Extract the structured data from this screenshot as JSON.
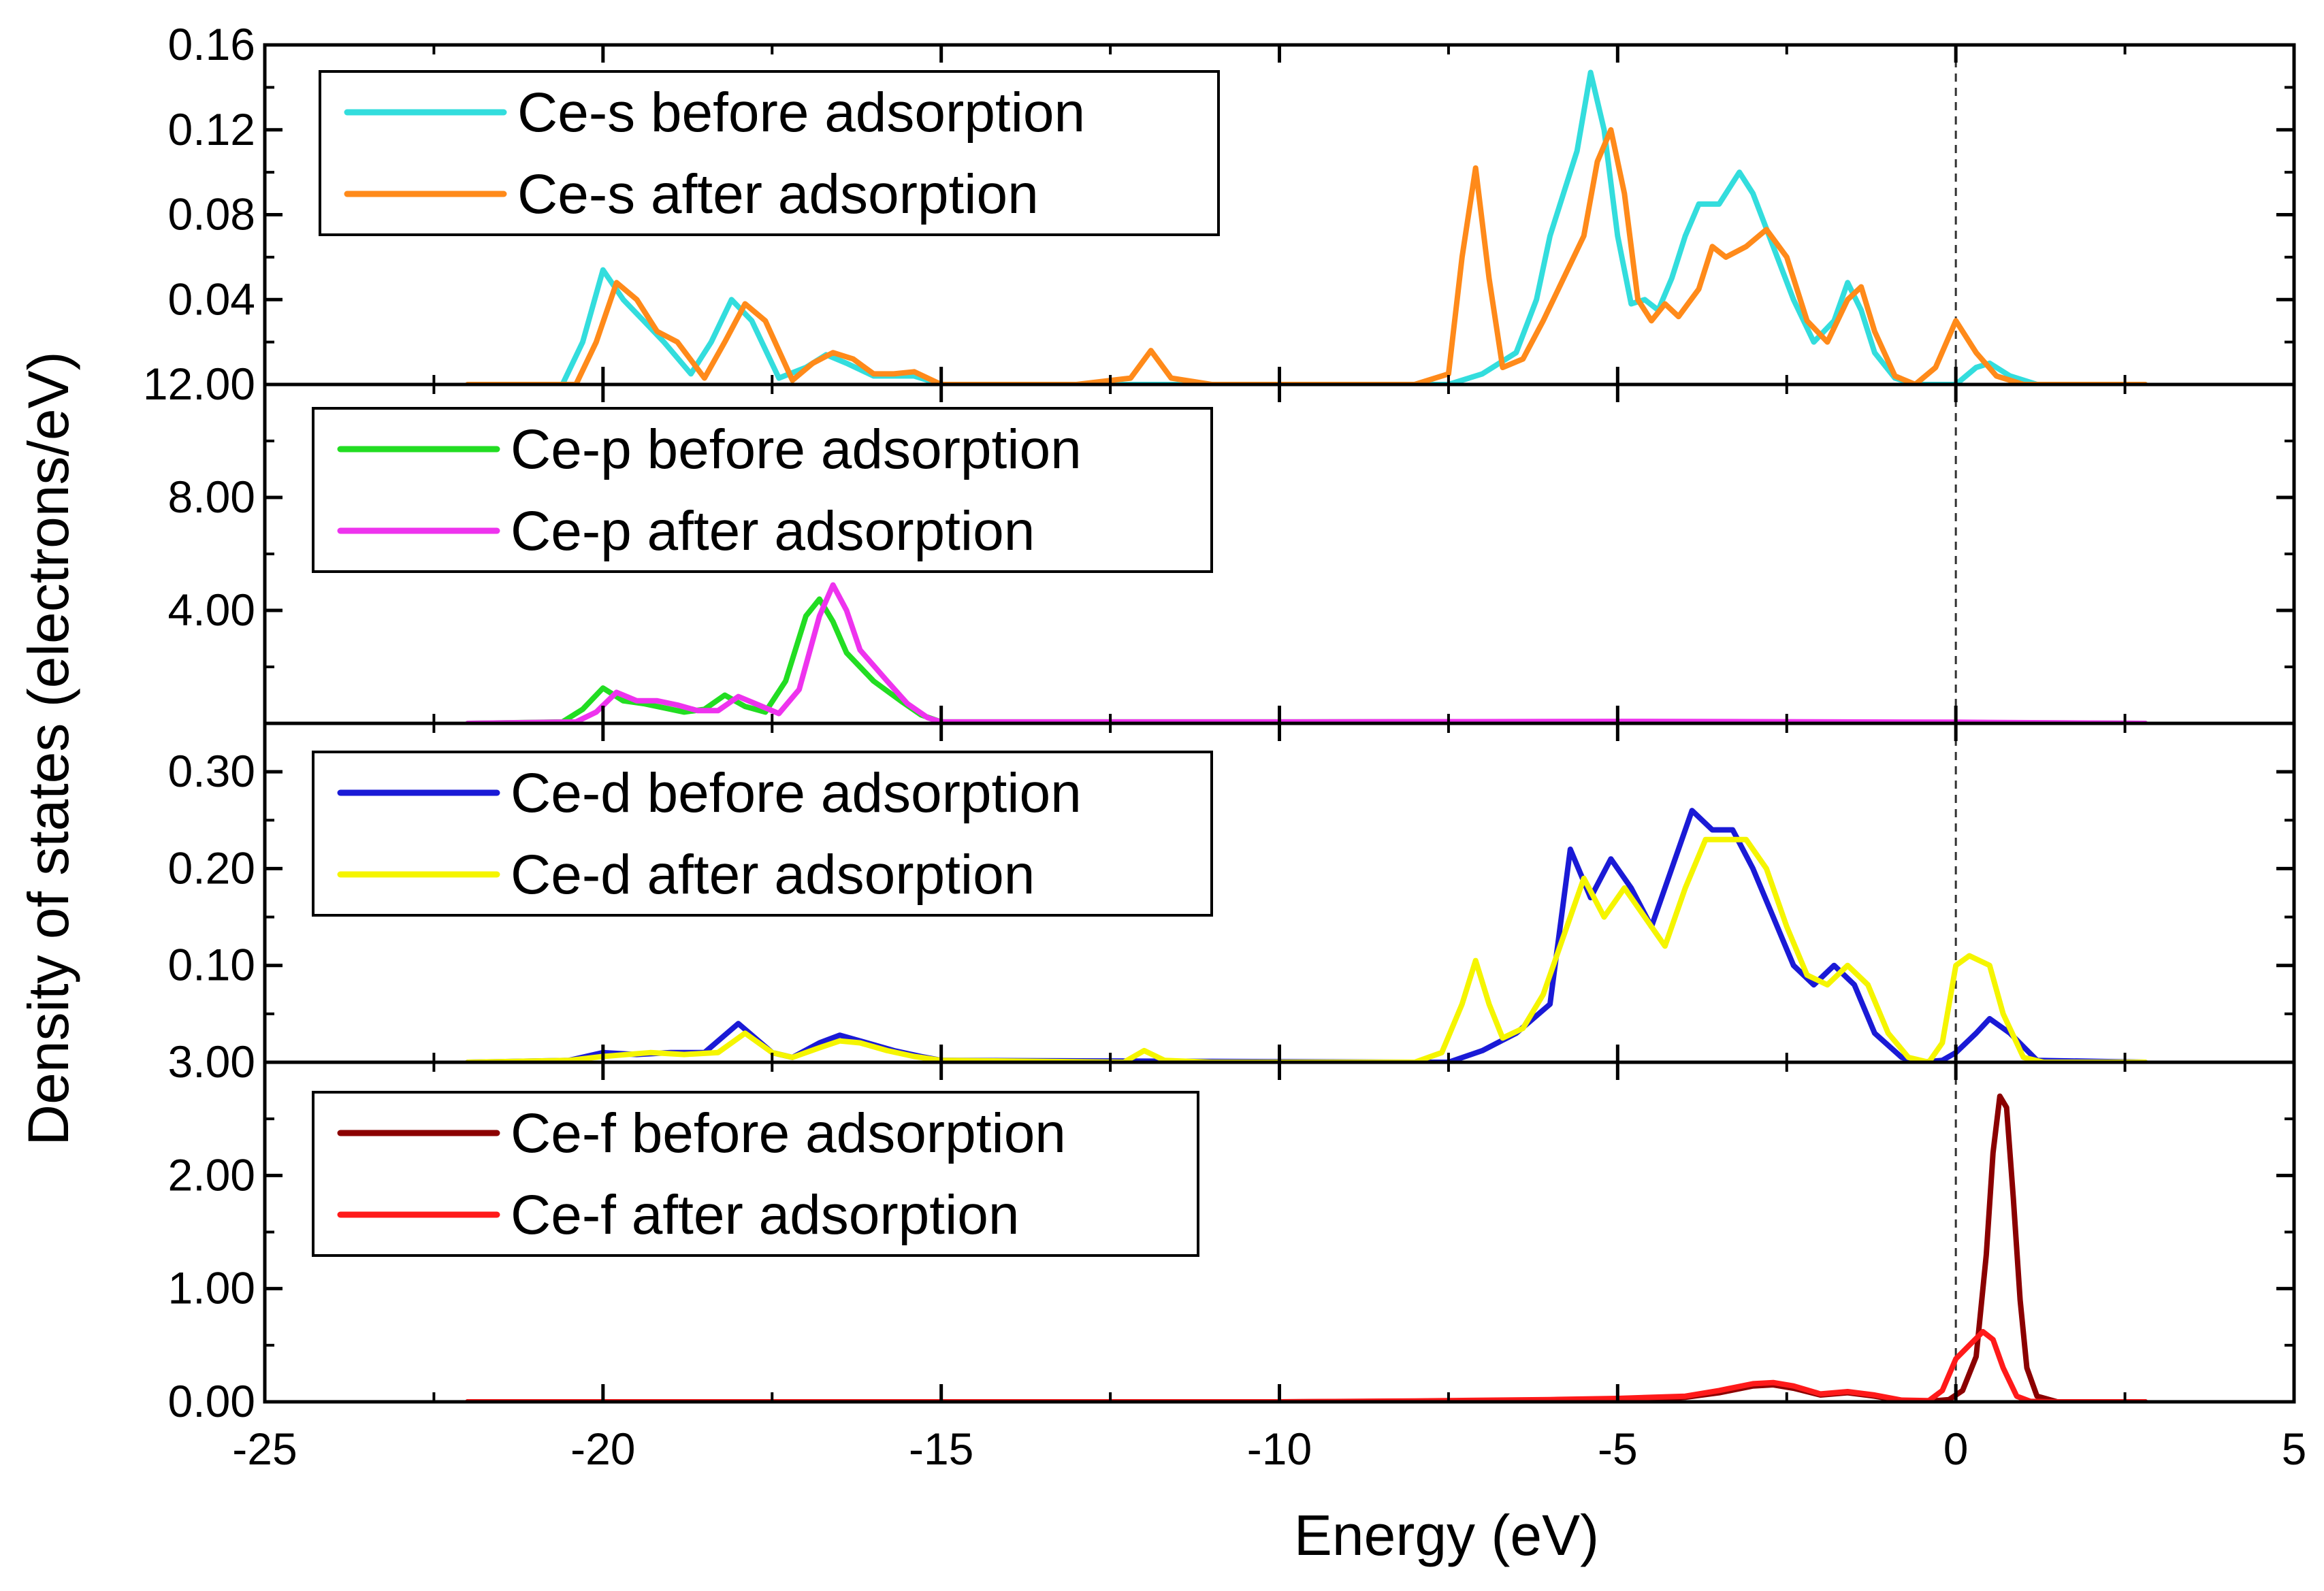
{
  "chart_data": {
    "type": "line",
    "title": "",
    "xlabel": "Energy (eV)",
    "ylabel": "Density of states (electrons/eV)",
    "xlim": [
      -25,
      5
    ],
    "xticks": [
      "-25",
      "-20",
      "-15",
      "-10",
      "-5",
      "0",
      "5"
    ],
    "fermi_level": 0,
    "panels": [
      {
        "id": "s",
        "ylim": [
          0,
          0.16
        ],
        "yticks": [
          "0.04",
          "0.08",
          "0.12",
          "0.16"
        ],
        "yticks_values": [
          0.04,
          0.08,
          0.12,
          0.16
        ],
        "bottom_label": "12.00",
        "series": [
          {
            "name": "Ce-s before adsorption",
            "color": "#33dddd",
            "x": [
              -22.0,
              -20.6,
              -20.3,
              -20.0,
              -19.7,
              -19.4,
              -19.1,
              -18.7,
              -18.4,
              -18.1,
              -17.8,
              -17.4,
              -17.0,
              -16.7,
              -16.4,
              -16.0,
              -15.7,
              -15.4,
              -15.0,
              -13.0,
              -12.0,
              -11.0,
              -8.0,
              -7.5,
              -7.0,
              -6.5,
              -6.2,
              -6.0,
              -5.8,
              -5.6,
              -5.4,
              -5.2,
              -5.0,
              -4.8,
              -4.6,
              -4.4,
              -4.2,
              -4.0,
              -3.8,
              -3.5,
              -3.2,
              -3.0,
              -2.7,
              -2.4,
              -2.1,
              -1.8,
              -1.6,
              -1.4,
              -1.2,
              -0.9,
              -0.6,
              -0.3,
              0.0,
              0.3,
              0.5,
              0.8,
              1.2,
              2.8
            ],
            "y": [
              0.0,
              0.0,
              0.02,
              0.054,
              0.04,
              0.03,
              0.02,
              0.005,
              0.02,
              0.04,
              0.03,
              0.003,
              0.008,
              0.014,
              0.01,
              0.004,
              0.004,
              0.004,
              0.0,
              0.0,
              0.0,
              0.0,
              0.0,
              0.0,
              0.005,
              0.015,
              0.04,
              0.07,
              0.09,
              0.11,
              0.147,
              0.12,
              0.07,
              0.038,
              0.04,
              0.035,
              0.05,
              0.07,
              0.085,
              0.085,
              0.1,
              0.09,
              0.065,
              0.04,
              0.02,
              0.03,
              0.048,
              0.035,
              0.015,
              0.003,
              0.0,
              0.0,
              0.0,
              0.008,
              0.01,
              0.004,
              0.0,
              0.0
            ]
          },
          {
            "name": "Ce-s after adsorption",
            "color": "#ff8a1a",
            "x": [
              -22.0,
              -20.4,
              -20.1,
              -19.8,
              -19.5,
              -19.2,
              -18.9,
              -18.5,
              -18.2,
              -17.9,
              -17.6,
              -17.2,
              -16.9,
              -16.6,
              -16.3,
              -16.0,
              -15.7,
              -15.4,
              -15.0,
              -13.0,
              -12.2,
              -11.9,
              -11.6,
              -11.0,
              -8.0,
              -7.5,
              -7.3,
              -7.1,
              -6.9,
              -6.7,
              -6.4,
              -6.1,
              -5.8,
              -5.5,
              -5.3,
              -5.1,
              -4.9,
              -4.7,
              -4.5,
              -4.3,
              -4.1,
              -3.8,
              -3.6,
              -3.4,
              -3.1,
              -2.8,
              -2.5,
              -2.2,
              -1.9,
              -1.6,
              -1.4,
              -1.2,
              -0.9,
              -0.6,
              -0.3,
              0.0,
              0.3,
              0.6,
              1.0,
              2.8
            ],
            "y": [
              0.0,
              0.0,
              0.02,
              0.048,
              0.04,
              0.025,
              0.02,
              0.003,
              0.02,
              0.038,
              0.03,
              0.002,
              0.01,
              0.015,
              0.012,
              0.005,
              0.005,
              0.006,
              0.0,
              0.0,
              0.003,
              0.016,
              0.003,
              0.0,
              0.0,
              0.005,
              0.06,
              0.102,
              0.05,
              0.008,
              0.012,
              0.03,
              0.05,
              0.07,
              0.105,
              0.12,
              0.09,
              0.04,
              0.03,
              0.038,
              0.032,
              0.045,
              0.065,
              0.06,
              0.065,
              0.073,
              0.06,
              0.03,
              0.02,
              0.04,
              0.046,
              0.025,
              0.004,
              0.0,
              0.008,
              0.03,
              0.015,
              0.004,
              0.0,
              0.0
            ]
          }
        ],
        "legend": [
          "Ce-s before adsorption",
          "Ce-s after adsorption"
        ]
      },
      {
        "id": "p",
        "ylim": [
          0,
          12
        ],
        "yticks": [
          "4.00",
          "8.00"
        ],
        "yticks_values": [
          4,
          8
        ],
        "series": [
          {
            "name": "Ce-p before adsorption",
            "color": "#22dd22",
            "x": [
              -22.0,
              -20.6,
              -20.3,
              -20.0,
              -19.7,
              -19.4,
              -19.1,
              -18.8,
              -18.5,
              -18.2,
              -17.9,
              -17.6,
              -17.3,
              -17.0,
              -16.8,
              -16.6,
              -16.4,
              -16.0,
              -15.6,
              -15.3,
              -15.0,
              -10.0,
              -5.0,
              -3.0,
              0.0,
              2.8
            ],
            "y": [
              0.0,
              0.05,
              0.5,
              1.25,
              0.8,
              0.7,
              0.55,
              0.4,
              0.5,
              1.0,
              0.6,
              0.4,
              1.5,
              3.8,
              4.4,
              3.6,
              2.5,
              1.5,
              0.8,
              0.3,
              0.05,
              0.05,
              0.06,
              0.05,
              0.03,
              0.0
            ]
          },
          {
            "name": "Ce-p after adsorption",
            "color": "#ee33ee",
            "x": [
              -22.0,
              -20.4,
              -20.1,
              -19.8,
              -19.5,
              -19.2,
              -18.9,
              -18.6,
              -18.3,
              -18.0,
              -17.7,
              -17.4,
              -17.1,
              -16.8,
              -16.6,
              -16.4,
              -16.2,
              -15.8,
              -15.5,
              -15.2,
              -15.0,
              -10.0,
              -5.0,
              -3.0,
              0.0,
              2.8
            ],
            "y": [
              0.0,
              0.05,
              0.4,
              1.1,
              0.8,
              0.8,
              0.65,
              0.45,
              0.45,
              0.95,
              0.65,
              0.35,
              1.2,
              3.8,
              4.9,
              4.0,
              2.6,
              1.5,
              0.7,
              0.2,
              0.05,
              0.05,
              0.07,
              0.06,
              0.04,
              0.0
            ]
          }
        ],
        "legend": [
          "Ce-p before adsorption",
          "Ce-p after adsorption"
        ]
      },
      {
        "id": "d",
        "ylim": [
          0,
          0.35
        ],
        "yticks": [
          "0.10",
          "0.20",
          "0.30"
        ],
        "yticks_values": [
          0.1,
          0.2,
          0.3
        ],
        "bottom_label": "3.00",
        "series": [
          {
            "name": "Ce-d before adsorption",
            "color": "#1a1ad6",
            "x": [
              -22.0,
              -20.5,
              -20.0,
              -19.5,
              -19.0,
              -18.5,
              -18.0,
              -17.5,
              -17.2,
              -16.8,
              -16.5,
              -16.1,
              -15.7,
              -15.3,
              -15.0,
              -8.0,
              -7.5,
              -7.0,
              -6.5,
              -6.0,
              -5.7,
              -5.4,
              -5.1,
              -4.8,
              -4.5,
              -4.2,
              -3.9,
              -3.6,
              -3.3,
              -3.0,
              -2.7,
              -2.4,
              -2.1,
              -1.8,
              -1.5,
              -1.2,
              -0.8,
              -0.5,
              -0.2,
              0.0,
              0.3,
              0.5,
              0.8,
              1.2,
              2.8
            ],
            "y": [
              0.0,
              0.002,
              0.01,
              0.008,
              0.01,
              0.01,
              0.04,
              0.01,
              0.005,
              0.02,
              0.028,
              0.02,
              0.012,
              0.006,
              0.002,
              0.0,
              0.0,
              0.012,
              0.03,
              0.06,
              0.22,
              0.17,
              0.21,
              0.18,
              0.14,
              0.2,
              0.26,
              0.24,
              0.24,
              0.2,
              0.15,
              0.1,
              0.08,
              0.1,
              0.08,
              0.03,
              0.005,
              0.0,
              0.002,
              0.01,
              0.03,
              0.045,
              0.03,
              0.002,
              0.0
            ]
          },
          {
            "name": "Ce-d after adsorption",
            "color": "#f5f500",
            "x": [
              -22.0,
              -20.5,
              -20.0,
              -19.3,
              -18.8,
              -18.3,
              -17.9,
              -17.5,
              -17.2,
              -16.8,
              -16.5,
              -16.2,
              -15.8,
              -15.4,
              -15.0,
              -12.3,
              -12.0,
              -11.7,
              -11.0,
              -8.0,
              -7.6,
              -7.3,
              -7.1,
              -6.9,
              -6.7,
              -6.4,
              -6.1,
              -5.8,
              -5.5,
              -5.2,
              -4.9,
              -4.6,
              -4.3,
              -4.0,
              -3.7,
              -3.4,
              -3.1,
              -2.8,
              -2.5,
              -2.2,
              -1.9,
              -1.6,
              -1.3,
              -1.0,
              -0.7,
              -0.4,
              -0.2,
              0.0,
              0.2,
              0.5,
              0.7,
              1.0,
              1.3,
              2.8
            ],
            "y": [
              0.0,
              0.002,
              0.006,
              0.01,
              0.008,
              0.01,
              0.03,
              0.01,
              0.005,
              0.015,
              0.022,
              0.02,
              0.012,
              0.006,
              0.002,
              0.0,
              0.012,
              0.002,
              0.0,
              0.0,
              0.01,
              0.06,
              0.105,
              0.06,
              0.025,
              0.035,
              0.07,
              0.13,
              0.19,
              0.15,
              0.18,
              0.15,
              0.12,
              0.18,
              0.23,
              0.23,
              0.23,
              0.2,
              0.14,
              0.09,
              0.08,
              0.1,
              0.08,
              0.03,
              0.005,
              0.0,
              0.02,
              0.1,
              0.11,
              0.1,
              0.05,
              0.005,
              0.0,
              0.0
            ]
          }
        ],
        "legend": [
          "Ce-d before adsorption",
          "Ce-d after adsorption"
        ]
      },
      {
        "id": "f",
        "ylim": [
          0,
          3.0
        ],
        "yticks": [
          "0.00",
          "1.00",
          "2.00"
        ],
        "yticks_values": [
          0,
          1,
          2
        ],
        "series": [
          {
            "name": "Ce-f before adsorption",
            "color": "#8b0000",
            "x": [
              -22.0,
              -10.0,
              -8.0,
              -6.0,
              -5.0,
              -4.0,
              -3.5,
              -3.0,
              -2.7,
              -2.4,
              -2.0,
              -1.6,
              -1.2,
              -0.8,
              -0.4,
              -0.1,
              0.1,
              0.3,
              0.45,
              0.55,
              0.65,
              0.75,
              0.85,
              0.95,
              1.05,
              1.2,
              1.5,
              2.8
            ],
            "y": [
              0.0,
              0.0,
              0.005,
              0.01,
              0.02,
              0.04,
              0.08,
              0.14,
              0.15,
              0.12,
              0.06,
              0.08,
              0.05,
              0.01,
              0.005,
              0.02,
              0.1,
              0.4,
              1.3,
              2.2,
              2.7,
              2.6,
              1.8,
              0.9,
              0.3,
              0.05,
              0.0,
              0.0
            ]
          },
          {
            "name": "Ce-f after adsorption",
            "color": "#ff1a1a",
            "x": [
              -22.0,
              -10.0,
              -8.0,
              -6.0,
              -5.0,
              -4.0,
              -3.5,
              -3.0,
              -2.7,
              -2.4,
              -2.0,
              -1.6,
              -1.2,
              -0.8,
              -0.4,
              -0.2,
              0.0,
              0.2,
              0.4,
              0.55,
              0.7,
              0.9,
              1.1,
              1.4,
              2.8
            ],
            "y": [
              0.0,
              0.0,
              0.008,
              0.02,
              0.03,
              0.05,
              0.1,
              0.16,
              0.17,
              0.14,
              0.07,
              0.09,
              0.06,
              0.015,
              0.01,
              0.1,
              0.38,
              0.5,
              0.62,
              0.55,
              0.3,
              0.05,
              0.005,
              0.0,
              0.0
            ]
          }
        ],
        "legend": [
          "Ce-f before adsorption",
          "Ce-f after adsorption"
        ]
      }
    ]
  }
}
